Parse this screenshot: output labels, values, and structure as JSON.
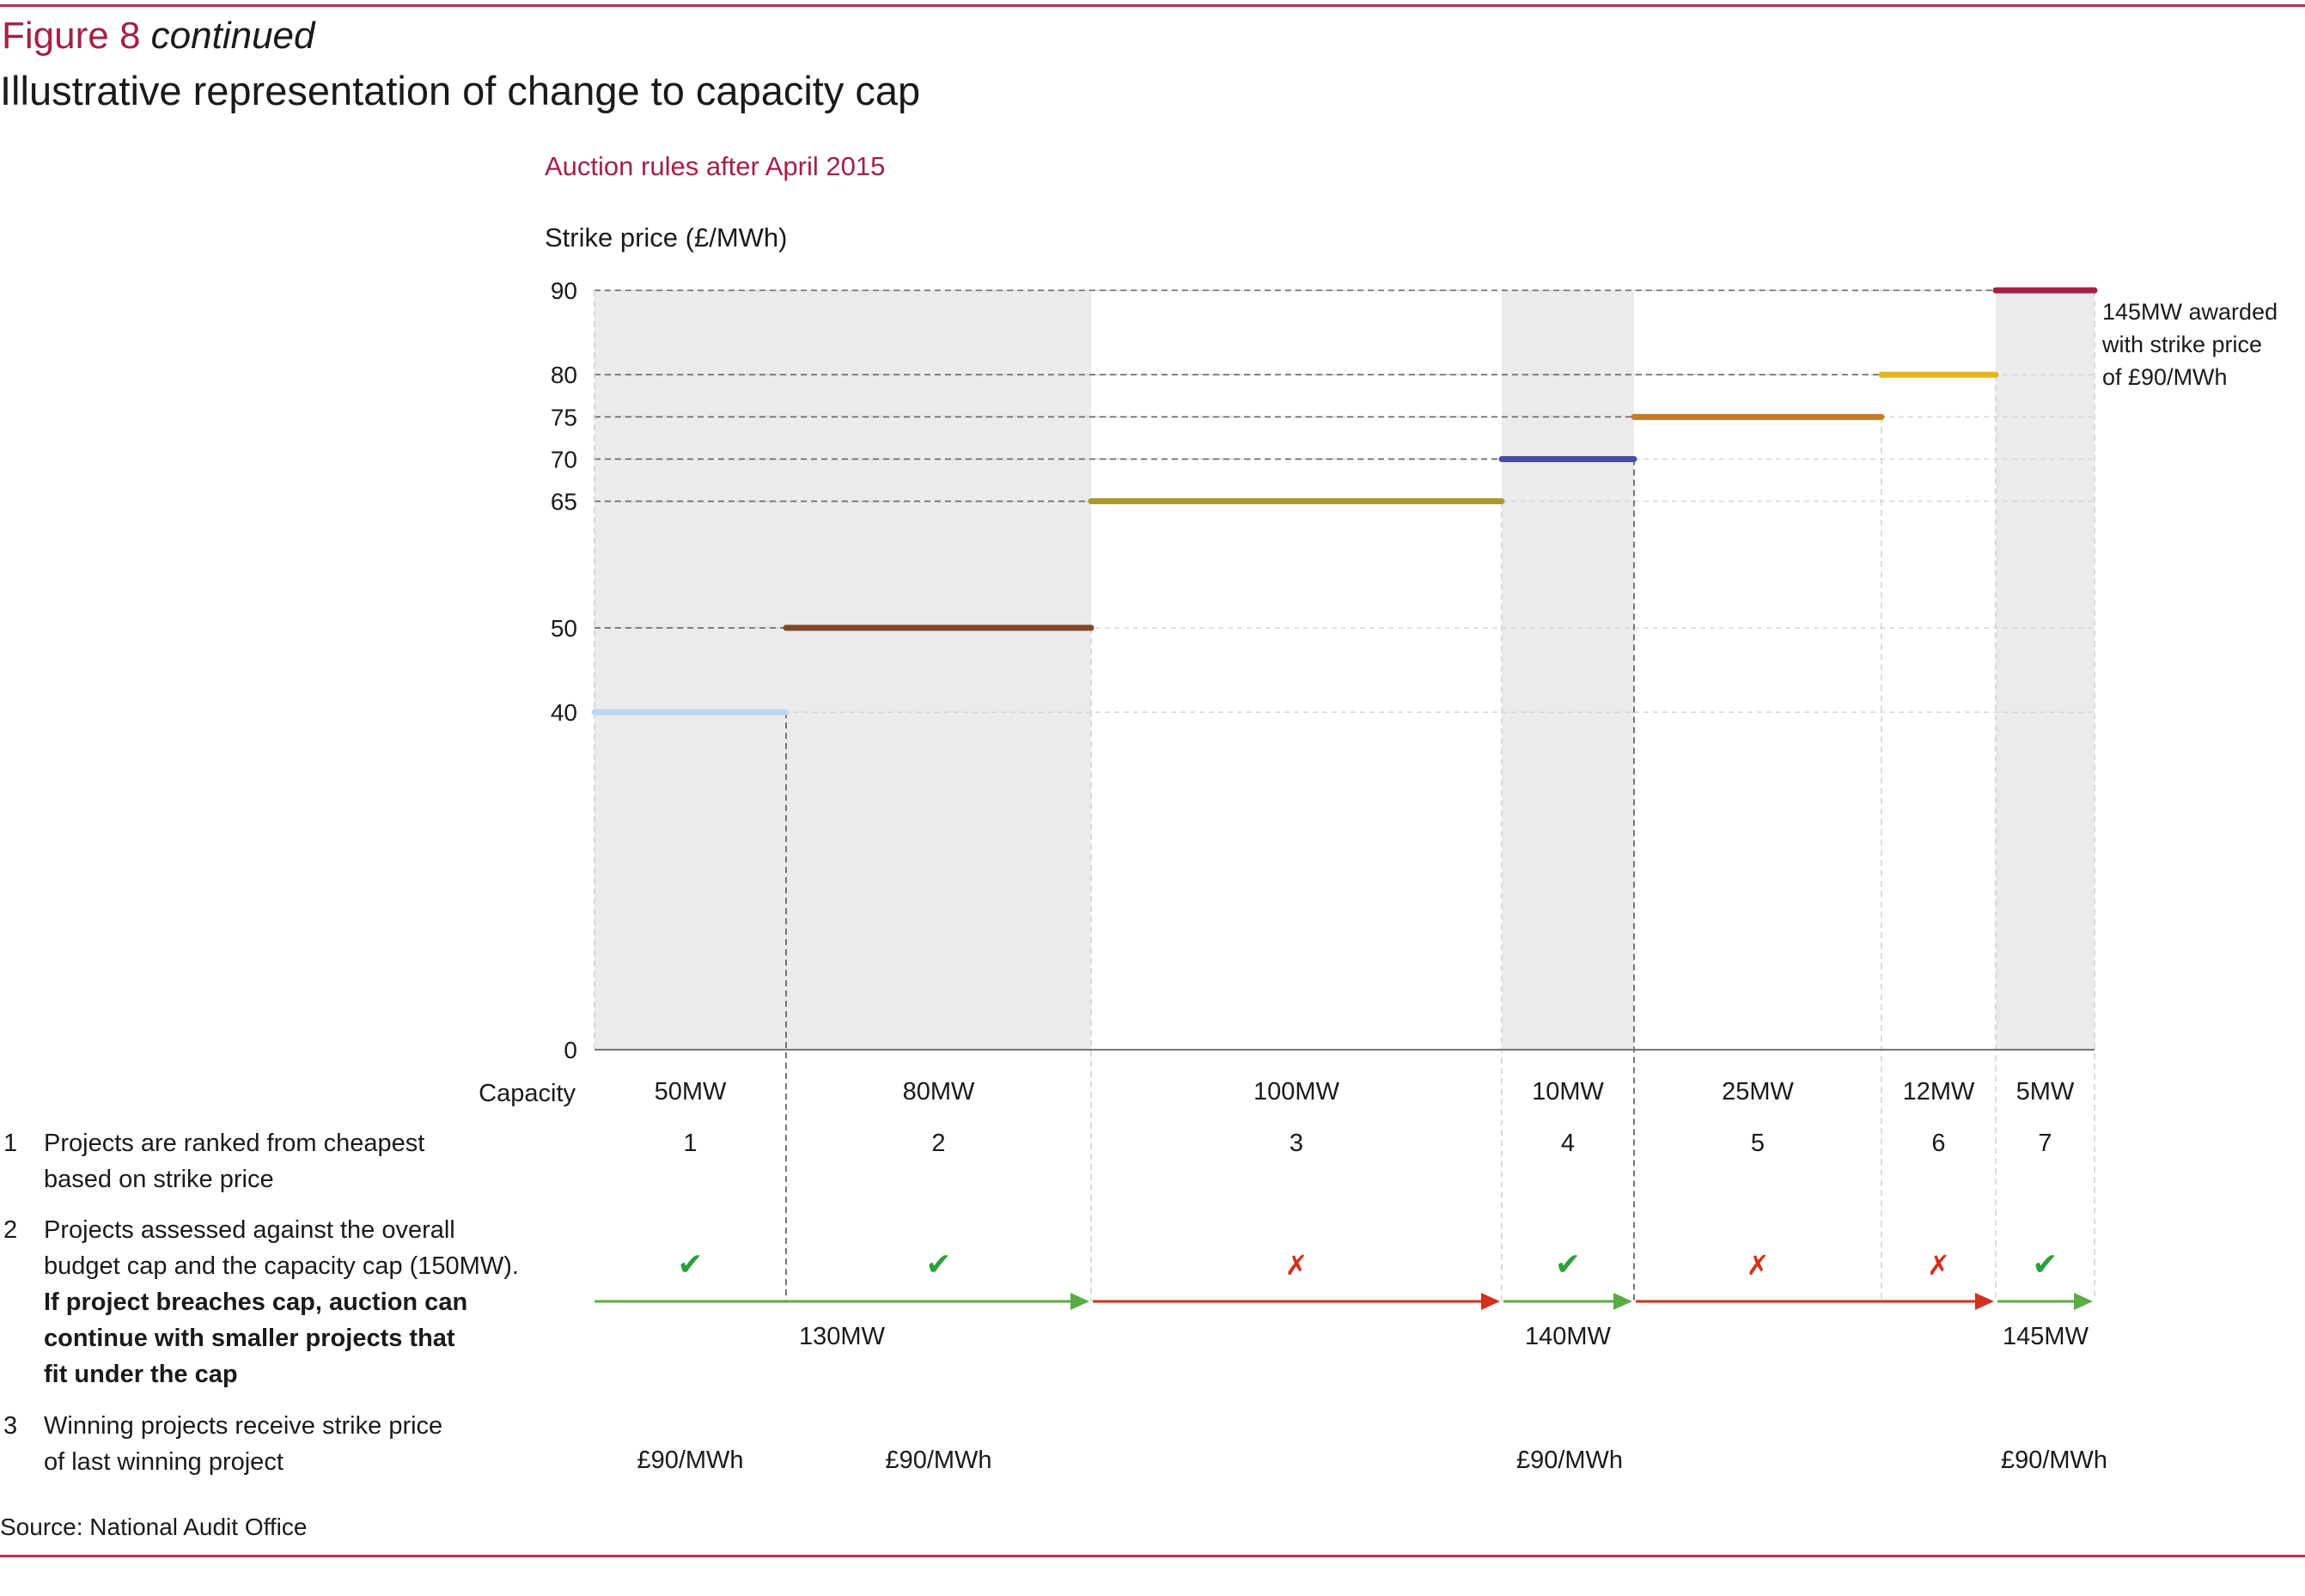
{
  "header": {
    "figure_number": "Figure 8",
    "figure_qualifier": "continued",
    "subtitle": "Illustrative representation of change to capacity cap"
  },
  "source": "Source: National Audit Office",
  "colors": {
    "accent": "#a51f46",
    "shade": "#ebebed",
    "tick": "#2e9f3e",
    "cross": "#d0311e",
    "arrow_green": "#5aab43",
    "arrow_red": "#d0311e"
  },
  "chart_data": {
    "type": "bar",
    "title": "Auction rules after April 2015",
    "ylabel": "Strike price (£/MWh)",
    "xlabel": "Capacity",
    "ylim": [
      0,
      90
    ],
    "yticks": [
      0,
      40,
      50,
      65,
      70,
      75,
      80,
      90
    ],
    "projects": [
      {
        "rank": "1",
        "capacity": "50MW",
        "strike_price": 40,
        "color": "#bdd7f0",
        "shaded": true,
        "assessed": "tick"
      },
      {
        "rank": "2",
        "capacity": "80MW",
        "strike_price": 50,
        "color": "#7b4a2e",
        "shaded": true,
        "assessed": "tick"
      },
      {
        "rank": "3",
        "capacity": "100MW",
        "strike_price": 65,
        "color": "#a79b2a",
        "shaded": false,
        "assessed": "cross"
      },
      {
        "rank": "4",
        "capacity": "10MW",
        "strike_price": 70,
        "color": "#4a4d9c",
        "shaded": true,
        "assessed": "tick"
      },
      {
        "rank": "5",
        "capacity": "25MW",
        "strike_price": 75,
        "color": "#c87b24",
        "shaded": false,
        "assessed": "cross"
      },
      {
        "rank": "6",
        "capacity": "12MW",
        "strike_price": 80,
        "color": "#e2b61d",
        "shaded": false,
        "assessed": "cross"
      },
      {
        "rank": "7",
        "capacity": "5MW",
        "strike_price": 90,
        "color": "#a51f46",
        "shaded": true,
        "assessed": "tick"
      }
    ],
    "annotation": [
      "145MW awarded",
      "with strike price",
      "of £90/MWh"
    ],
    "cumulative_labels": [
      {
        "after_rank": 2,
        "text": "130MW"
      },
      {
        "after_rank": 4,
        "text": "140MW"
      },
      {
        "after_rank": 7,
        "text": "145MW"
      }
    ],
    "price_labels": [
      {
        "rank": 1,
        "text": "£90/MWh"
      },
      {
        "rank": 2,
        "text": "£90/MWh"
      },
      {
        "rank": 4,
        "text": "£90/MWh"
      },
      {
        "rank": 7,
        "text": "£90/MWh"
      }
    ],
    "steps": [
      {
        "num": "1",
        "lines": [
          {
            "text": "Projects are ranked from cheapest",
            "bold": false
          },
          {
            "text": "based on strike price",
            "bold": false
          }
        ]
      },
      {
        "num": "2",
        "lines": [
          {
            "text": "Projects assessed against the overall",
            "bold": false
          },
          {
            "text": "budget cap and the capacity cap (150MW).",
            "bold": false
          },
          {
            "text": "If project breaches cap, auction can",
            "bold": true
          },
          {
            "text": "continue with smaller projects that",
            "bold": true
          },
          {
            "text": "fit under the cap",
            "bold": true
          }
        ]
      },
      {
        "num": "3",
        "lines": [
          {
            "text": "Winning projects receive strike price",
            "bold": false
          },
          {
            "text": "of last winning project",
            "bold": false
          }
        ]
      }
    ]
  }
}
